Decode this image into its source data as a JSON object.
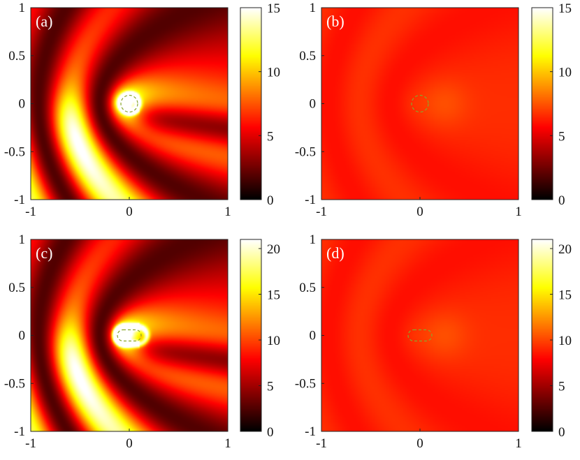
{
  "chart_data": [
    {
      "type": "heatmap",
      "panel_label": "(a)",
      "field": "bare",
      "obstacle": "circle",
      "x_ticks": [
        "-1",
        "0",
        "1"
      ],
      "y_ticks": [
        "1",
        "0.5",
        "0",
        "-0.5",
        "-1"
      ],
      "xlim": [
        -1,
        1
      ],
      "ylim": [
        -1,
        1
      ],
      "colorbar": {
        "min": 0,
        "max": 15,
        "ticks": [
          "15",
          "10",
          "5",
          "0"
        ],
        "colormap": "hot"
      }
    },
    {
      "type": "heatmap",
      "panel_label": "(b)",
      "field": "cloaked",
      "obstacle": "circle",
      "x_ticks": [
        "-1",
        "0",
        "1"
      ],
      "y_ticks": [
        "1",
        "0.5",
        "0",
        "-0.5",
        "-1"
      ],
      "xlim": [
        -1,
        1
      ],
      "ylim": [
        -1,
        1
      ],
      "colorbar": {
        "min": 0,
        "max": 15,
        "ticks": [
          "15",
          "10",
          "5",
          "0"
        ],
        "colormap": "hot"
      }
    },
    {
      "type": "heatmap",
      "panel_label": "(c)",
      "field": "bare",
      "obstacle": "stadium",
      "x_ticks": [
        "-1",
        "0",
        "1"
      ],
      "y_ticks": [
        "1",
        "0.5",
        "0",
        "-0.5",
        "-1"
      ],
      "xlim": [
        -1,
        1
      ],
      "ylim": [
        -1,
        1
      ],
      "colorbar": {
        "min": 0,
        "max": 21,
        "ticks": [
          "20",
          "15",
          "10",
          "5",
          "0"
        ],
        "colormap": "hot"
      }
    },
    {
      "type": "heatmap",
      "panel_label": "(d)",
      "field": "cloaked",
      "obstacle": "stadium",
      "x_ticks": [
        "-1",
        "0",
        "1"
      ],
      "y_ticks": [
        "1",
        "0.5",
        "0",
        "-0.5",
        "-1"
      ],
      "xlim": [
        -1,
        1
      ],
      "ylim": [
        -1,
        1
      ],
      "colorbar": {
        "min": 0,
        "max": 21,
        "ticks": [
          "20",
          "15",
          "10",
          "5",
          "0"
        ],
        "colormap": "hot"
      }
    }
  ]
}
